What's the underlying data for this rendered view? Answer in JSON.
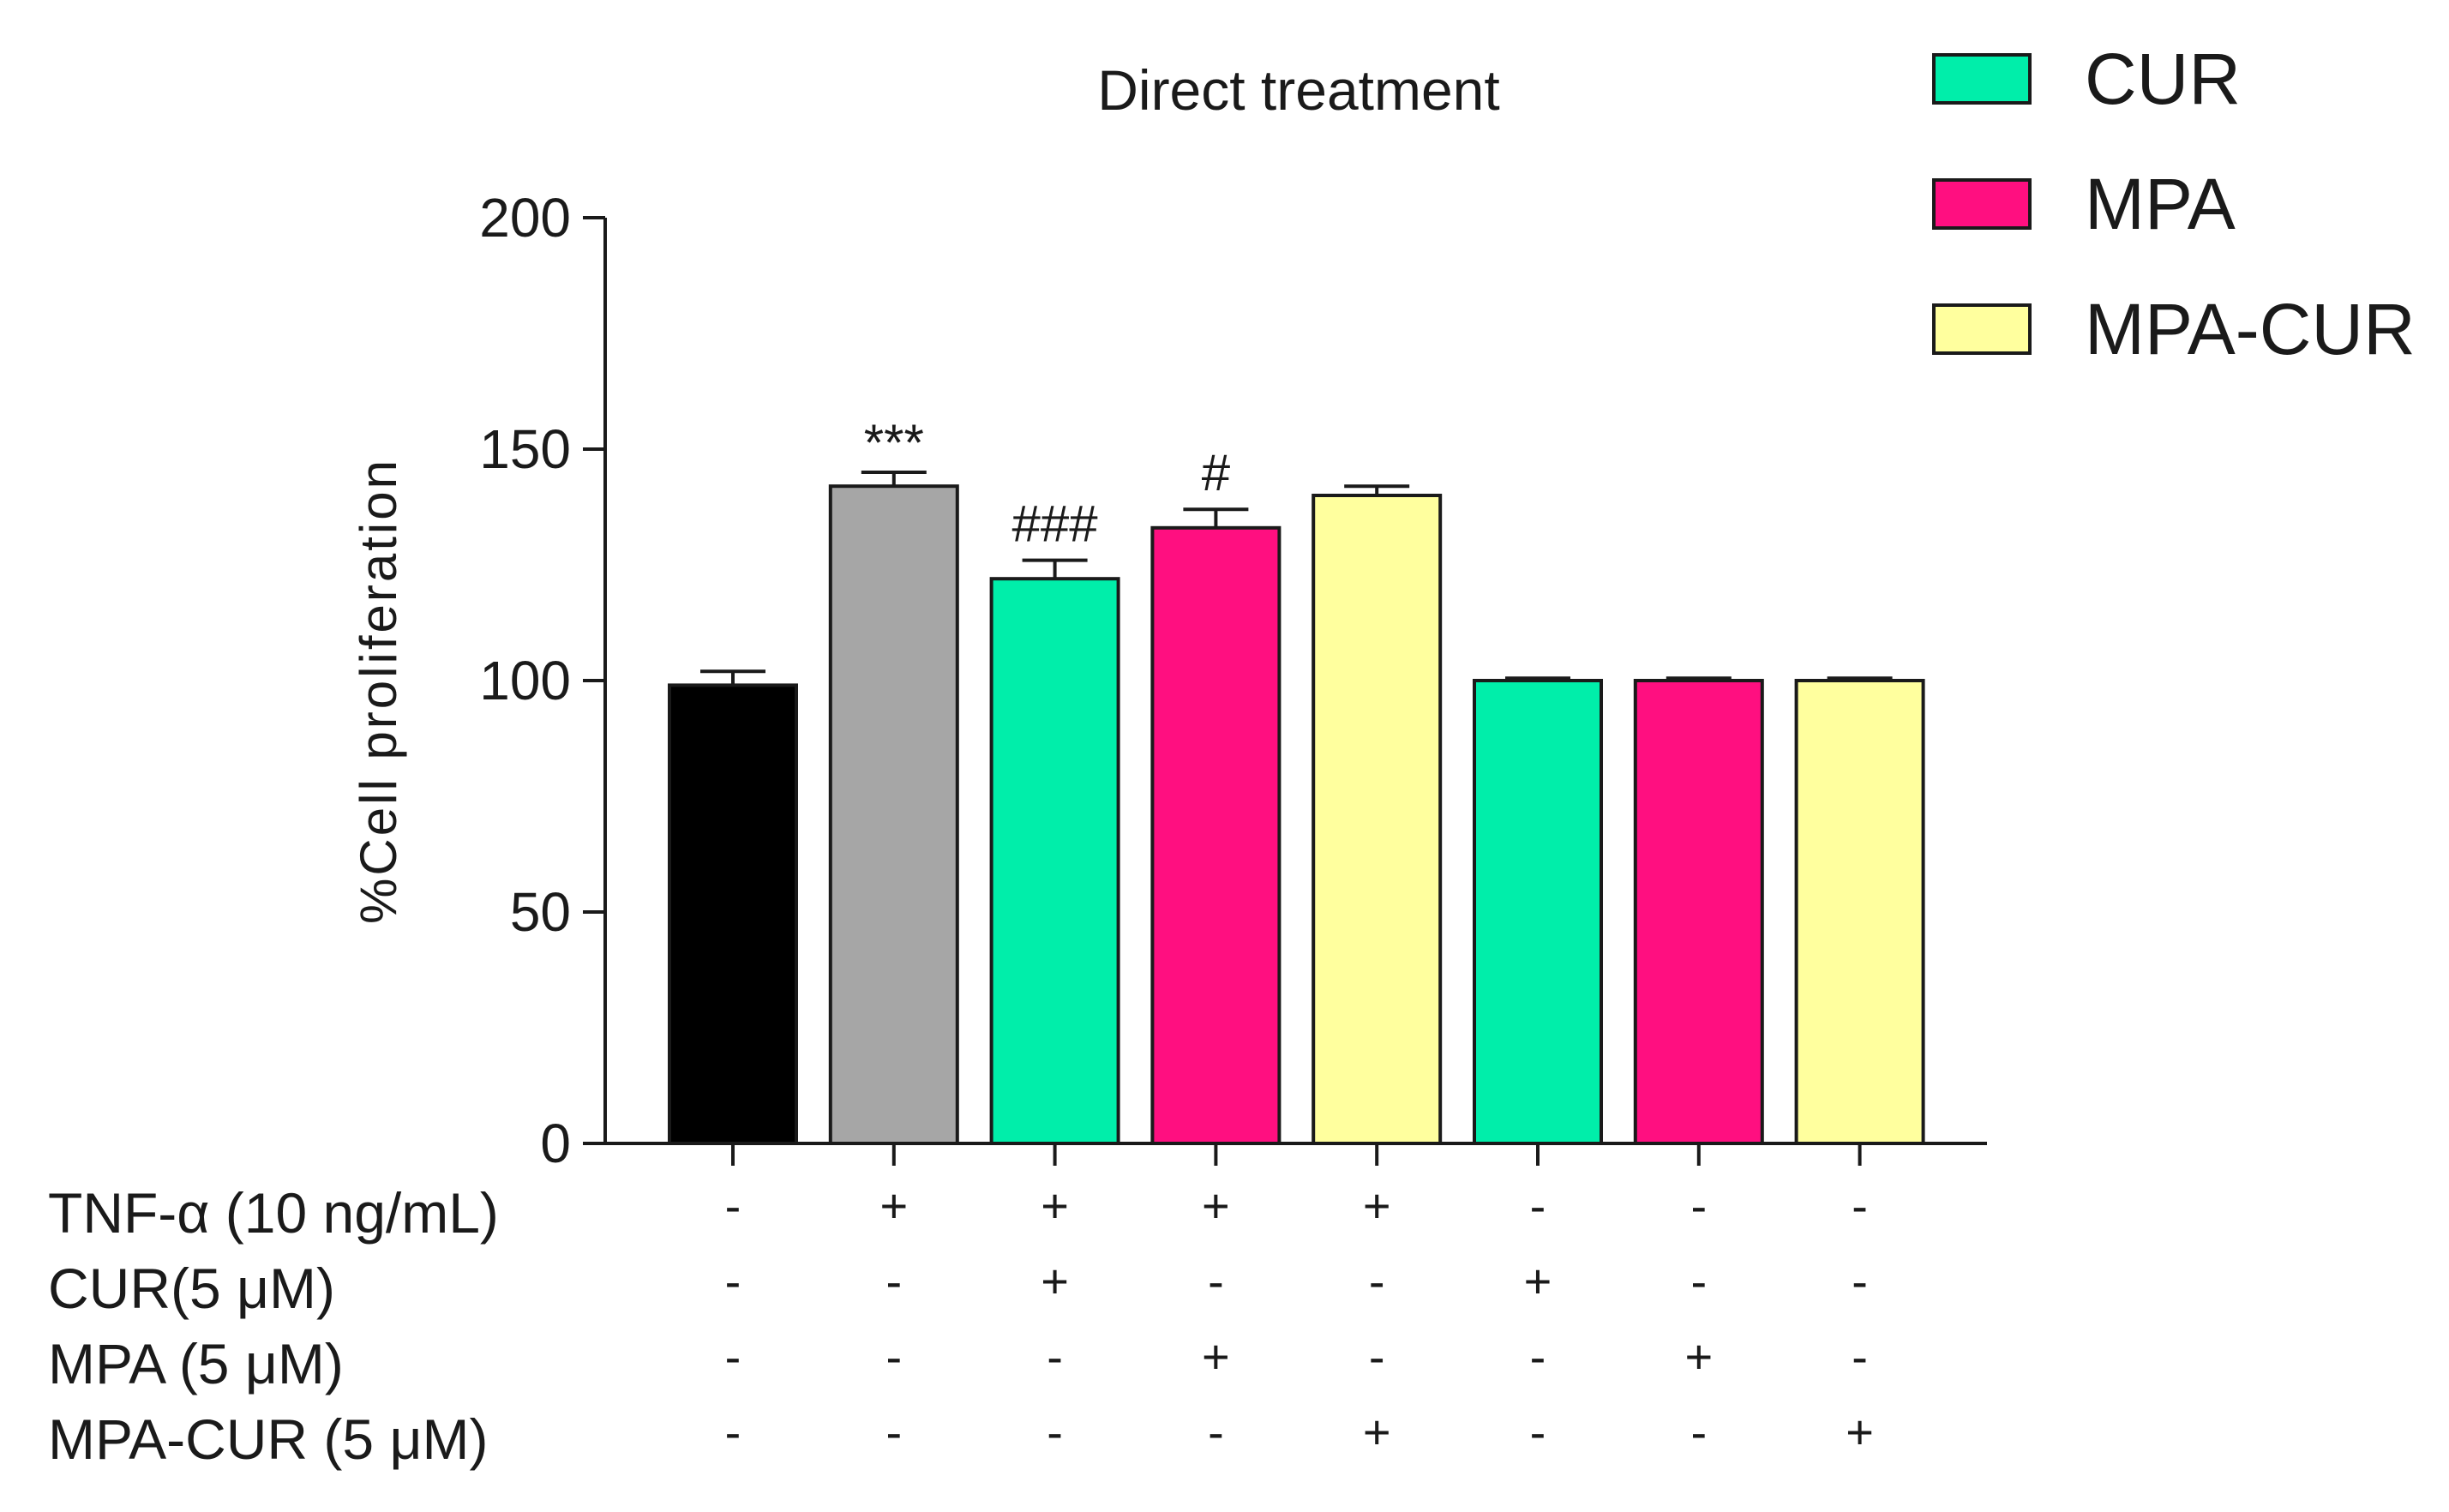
{
  "chart_data": {
    "type": "bar",
    "title": "Direct treatment",
    "ylabel": "%Cell proliferation",
    "xlabel": "",
    "ylim": [
      0,
      200
    ],
    "yticks": [
      0,
      50,
      100,
      150,
      200
    ],
    "grid": false,
    "legend_position": "top-right",
    "legend": [
      {
        "label": "CUR",
        "color": "#00EEAA"
      },
      {
        "label": "MPA",
        "color": "#FF0F80"
      },
      {
        "label": "MPA-CUR",
        "color": "#FFFF9E"
      }
    ],
    "bars": [
      {
        "value": 99,
        "error": 3,
        "color": "#000000",
        "annotation": ""
      },
      {
        "value": 142,
        "error": 3,
        "color": "#A6A6A6",
        "annotation": "***"
      },
      {
        "value": 122,
        "error": 4,
        "color": "#00EEAA",
        "annotation": "###"
      },
      {
        "value": 133,
        "error": 4,
        "color": "#FF0F80",
        "annotation": "#"
      },
      {
        "value": 140,
        "error": 2,
        "color": "#FFFF9E",
        "annotation": ""
      },
      {
        "value": 100,
        "error": 0.5,
        "color": "#00EEAA",
        "annotation": ""
      },
      {
        "value": 100,
        "error": 0.5,
        "color": "#FF0F80",
        "annotation": ""
      },
      {
        "value": 100,
        "error": 0.5,
        "color": "#FFFF9E",
        "annotation": ""
      }
    ],
    "conditions": [
      {
        "label": "TNF-α (10 ng/mL)",
        "signs": [
          "-",
          "+",
          "+",
          "+",
          "+",
          "-",
          "-",
          "-"
        ]
      },
      {
        "label": "CUR(5 μM)",
        "signs": [
          "-",
          "-",
          "+",
          "-",
          "-",
          "+",
          "-",
          "-"
        ]
      },
      {
        "label": "MPA (5 μM)",
        "signs": [
          "-",
          "-",
          "-",
          "+",
          "-",
          "-",
          "+",
          "-"
        ]
      },
      {
        "label": "MPA-CUR (5 μM)",
        "signs": [
          "-",
          "-",
          "-",
          "-",
          "+",
          "-",
          "-",
          "+"
        ]
      }
    ]
  }
}
